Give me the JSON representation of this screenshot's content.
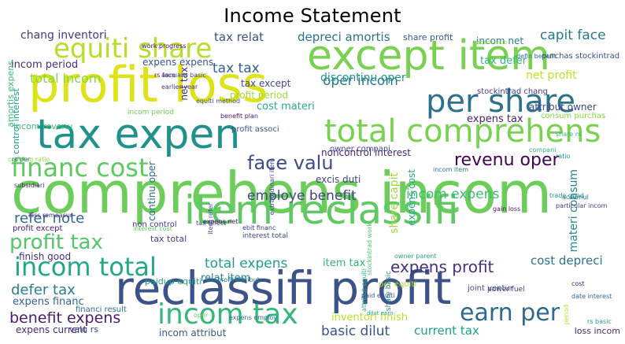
{
  "title": "Income Statement",
  "words": [
    {
      "text": "comprehens incom",
      "color": "#6ccd5a"
    },
    {
      "text": "reclassifi profit",
      "color": "#3b528b"
    },
    {
      "text": "profit loss",
      "color": "#dde318"
    },
    {
      "text": "item reclassifi",
      "color": "#5ec962"
    },
    {
      "text": "tax expen",
      "color": "#21918c"
    },
    {
      "text": "except item",
      "color": "#7ad151"
    },
    {
      "text": "per share",
      "color": "#2c728e"
    },
    {
      "text": "total comprehens",
      "color": "#7ad151"
    },
    {
      "text": "equiti share",
      "color": "#b5de2b"
    },
    {
      "text": "financ cost",
      "color": "#5ec962"
    },
    {
      "text": "incom tax",
      "color": "#35b779"
    },
    {
      "text": "incom total",
      "color": "#22a884"
    },
    {
      "text": "face valu",
      "color": "#3e4a89"
    },
    {
      "text": "earn per",
      "color": "#31688e"
    },
    {
      "text": "profit tax",
      "color": "#54c568"
    },
    {
      "text": "revenu oper",
      "color": "#440154"
    },
    {
      "text": "total incom",
      "color": "#86d549"
    },
    {
      "text": "expens profit",
      "color": "#46327e"
    },
    {
      "text": "employe benefit",
      "color": "#414487"
    },
    {
      "text": "total expens",
      "color": "#1f9e89"
    },
    {
      "text": "incom expens",
      "color": "#3dbc74"
    },
    {
      "text": "tax tax",
      "color": "#355f8d"
    },
    {
      "text": "capit face",
      "color": "#2a788e"
    },
    {
      "text": "oper incom",
      "color": "#2a788e"
    },
    {
      "text": "defer tax",
      "color": "#287d8e"
    },
    {
      "text": "refer note",
      "color": "#31688e"
    },
    {
      "text": "benefit expens",
      "color": "#481b6d"
    },
    {
      "text": "basic dilut",
      "color": "#3b528b"
    },
    {
      "text": "current tax",
      "color": "#1fa088"
    },
    {
      "text": "discontinu oper",
      "color": "#1f988b"
    },
    {
      "text": "net profit",
      "color": "#c2df23"
    },
    {
      "text": "cost depreci",
      "color": "#2e6f8e"
    },
    {
      "text": "share capit",
      "color": "#a0da39"
    },
    {
      "text": "expens financ",
      "color": "#32648e"
    },
    {
      "text": "depreci amortis",
      "color": "#2c728e"
    },
    {
      "text": "tax relat",
      "color": "#3b528b"
    },
    {
      "text": "chang inventori",
      "color": "#443983"
    },
    {
      "text": "cost materi",
      "color": "#29af7f"
    },
    {
      "text": "incom period",
      "color": "#472d7b"
    },
    {
      "text": "item tax",
      "color": "#34b679"
    },
    {
      "text": "inventori finish",
      "color": "#bddf26"
    },
    {
      "text": "incom attribut",
      "color": "#38598c"
    },
    {
      "text": "relat item",
      "color": "#277f8e"
    },
    {
      "text": "expens current",
      "color": "#472a7a"
    },
    {
      "text": "finish good",
      "color": "#46307e"
    },
    {
      "text": "expens tax",
      "color": "#482475"
    },
    {
      "text": "attribut owner",
      "color": "#3e4989"
    },
    {
      "text": "noncontrol interest",
      "color": "#482878"
    },
    {
      "text": "excis duti",
      "color": "#414487"
    },
    {
      "text": "profit period",
      "color": "#a2da37"
    },
    {
      "text": "continu oper",
      "color": "#2e6e8e"
    },
    {
      "text": "net tax",
      "color": "#482979"
    },
    {
      "text": "expens expens",
      "color": "#39558c"
    },
    {
      "text": "tax except",
      "color": "#404688"
    },
    {
      "text": "tax defer",
      "color": "#31b57b"
    },
    {
      "text": "incom net",
      "color": "#26828e"
    },
    {
      "text": "materi consum",
      "color": "#24868e"
    },
    {
      "text": "expens cost",
      "color": "#25ab82"
    },
    {
      "text": "amortis expens",
      "color": "#3aba76"
    },
    {
      "text": "control interest",
      "color": "#1e9b8a"
    },
    {
      "text": "incom revenu",
      "color": "#40bd72"
    },
    {
      "text": "tax total",
      "color": "#423f85"
    },
    {
      "text": "non control",
      "color": "#453882"
    },
    {
      "text": "paidup equiti",
      "color": "#20a386"
    },
    {
      "text": "financi result",
      "color": "#2d708e"
    },
    {
      "text": "per equiti",
      "color": "#b0dd2f"
    },
    {
      "text": "valu rs",
      "color": "#3f4788"
    },
    {
      "text": "loss incom",
      "color": "#472f7d"
    },
    {
      "text": "share profit",
      "color": "#38588c"
    },
    {
      "text": "owner compani",
      "color": "#404688"
    },
    {
      "text": "consum purchas",
      "color": "#8bd646"
    },
    {
      "text": "purchas stockintrad",
      "color": "#3c4f8a"
    },
    {
      "text": "stockintrad chang",
      "color": "#443a83"
    },
    {
      "text": "profit except",
      "color": "#481769"
    },
    {
      "text": "profit associ",
      "color": "#3c508b"
    },
    {
      "text": "equiti ratio",
      "color": "#9bd93c"
    },
    {
      "text": "incom period",
      "color": "#6ece58"
    },
    {
      "text": "expens employ",
      "color": "#2d708e"
    },
    {
      "text": "share basic",
      "color": "#25858e"
    },
    {
      "text": "interest total",
      "color": "#3f4889"
    },
    {
      "text": "rs face",
      "color": "#48186a"
    },
    {
      "text": "annualis basic",
      "color": "#3d4e8a"
    },
    {
      "text": "coverag ratio",
      "color": "#95d840"
    },
    {
      "text": "loss remeasur",
      "color": "#472c7a"
    },
    {
      "text": "earlier year",
      "color": "#453781"
    },
    {
      "text": "power fuel",
      "color": "#424086"
    },
    {
      "text": "joint ventur",
      "color": "#3e4c8a"
    },
    {
      "text": "trade good",
      "color": "#1f948c"
    },
    {
      "text": "work progress",
      "color": "#46085c"
    },
    {
      "text": "ebit financ",
      "color": "#453581"
    },
    {
      "text": "dilut earn",
      "color": "#22a785"
    },
    {
      "text": "equiti method",
      "color": "#3a548c"
    },
    {
      "text": "share rs",
      "color": "#31b57b"
    },
    {
      "text": "defin benefit",
      "color": "#2e6d8e"
    },
    {
      "text": "benefit plan",
      "color": "#471164"
    },
    {
      "text": "rs per",
      "color": "#2f6c8e"
    },
    {
      "text": "expens net",
      "color": "#48186a"
    },
    {
      "text": "item refer",
      "color": "#3b528b"
    },
    {
      "text": "rs basic",
      "color": "#1f998a"
    },
    {
      "text": "interest cost",
      "color": "#5cc863"
    },
    {
      "text": "tax affect",
      "color": "#404588"
    },
    {
      "text": "accumul",
      "color": "#2b748e"
    },
    {
      "text": "gain loss",
      "color": "#481467"
    },
    {
      "text": "date interest",
      "color": "#31678e"
    },
    {
      "text": "particular incom",
      "color": "#443983"
    },
    {
      "text": "incom item",
      "color": "#2a788e"
    },
    {
      "text": "stockintrad work",
      "color": "#4ac16d"
    },
    {
      "text": "extraordinari item",
      "color": "#3e4a89"
    },
    {
      "text": "owner parent",
      "color": "#22a884"
    },
    {
      "text": "attribut equiti",
      "color": "#31b57b"
    },
    {
      "text": "paid equiti",
      "color": "#3b528b"
    },
    {
      "text": "profit attribut",
      "color": "#287c8e"
    },
    {
      "text": "subsidiari",
      "color": "#482677"
    },
    {
      "text": "compani",
      "color": "#2db27d"
    },
    {
      "text": "oper",
      "color": "#6ece58"
    },
    {
      "text": "ratio",
      "color": "#1f9e89"
    },
    {
      "text": "period",
      "color": "#b8de29"
    },
    {
      "text": "cost",
      "color": "#481a6c"
    }
  ]
}
